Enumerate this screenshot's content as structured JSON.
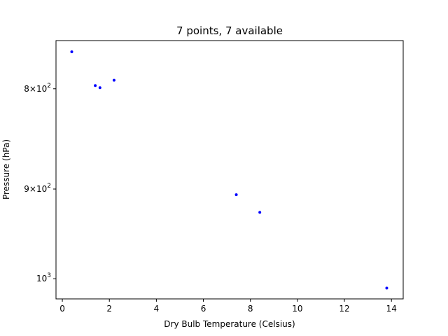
{
  "chart_data": {
    "type": "scatter",
    "title": "7 points, 7 available",
    "xlabel": "Dry Bulb Temperature (Celsius)",
    "ylabel": "Pressure (hPa)",
    "x_ticks": [
      0,
      2,
      4,
      6,
      8,
      10,
      12,
      14
    ],
    "x_tick_labels": [
      "0",
      "2",
      "4",
      "6",
      "8",
      "10",
      "12",
      "14"
    ],
    "y_scale": "log",
    "y_inverted": true,
    "y_ticks": [
      800,
      900,
      1000
    ],
    "y_tick_labels": [
      {
        "base": "8×10",
        "exp": "2"
      },
      {
        "base": "9×10",
        "exp": "2"
      },
      {
        "base": "10",
        "exp": "3"
      }
    ],
    "xlim": [
      -0.27,
      14.5
    ],
    "ylim": [
      756,
      1024
    ],
    "grid": false,
    "marker_color": "#0000ff",
    "series": [
      {
        "x": [
          0.4,
          1.4,
          1.6,
          2.2,
          7.4,
          8.4,
          13.8
        ],
        "y": [
          766,
          797,
          799,
          792,
          906,
          925,
          1011
        ]
      }
    ]
  }
}
